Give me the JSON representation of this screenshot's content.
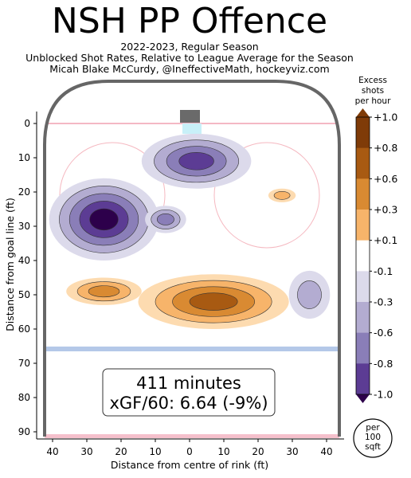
{
  "header": {
    "title": "NSH PP Offence",
    "subtitle_1": "2022-2023, Regular Season",
    "subtitle_2": "Unblocked Shot Rates, Relative to League Average for the Season",
    "subtitle_3": "Micah Blake McCurdy, @IneffectiveMath, hockeyviz.com"
  },
  "summary_box": {
    "minutes": "411 minutes",
    "xgf": "xGF/60: 6.64 (-9%)"
  },
  "per_badge": {
    "line1": "per",
    "line2": "100",
    "line3": "sqft"
  },
  "colors": {
    "orange_1": "#fddbb0",
    "orange_2": "#f7b46a",
    "orange_3": "#d98a32",
    "orange_4": "#a85a12",
    "orange_5": "#7f3b08",
    "purple_1": "#dcdaeb",
    "purple_2": "#b3acd1",
    "purple_3": "#8a7eb8",
    "purple_4": "#5c3c94",
    "purple_5": "#2d004b",
    "rink_board": "#666666",
    "blue_line": "#b4c8e8",
    "goal_line": "#f0a0b0"
  },
  "chart_data": {
    "type": "heatmap",
    "xlabel": "Distance from centre of rink (ft)",
    "ylabel": "Distance from goal line (ft)",
    "xlim": [
      -42.5,
      42.5
    ],
    "ylim": [
      -11,
      90
    ],
    "x_ticks": [
      40,
      30,
      20,
      10,
      0,
      10,
      20,
      30,
      40
    ],
    "x_tick_values": [
      -40,
      -30,
      -20,
      -10,
      0,
      10,
      20,
      30,
      40
    ],
    "y_ticks": [
      0,
      10,
      20,
      30,
      40,
      50,
      60,
      70,
      80,
      90
    ],
    "colorbar": {
      "title": [
        "Excess",
        "shots",
        "per hour"
      ],
      "labels": [
        "+1.0",
        "+0.8",
        "+0.6",
        "+0.3",
        "+0.1",
        "-0.1",
        "-0.3",
        "-0.6",
        "-0.8",
        "-1.0"
      ],
      "values": [
        1.0,
        0.8,
        0.6,
        0.3,
        0.1,
        -0.1,
        -0.3,
        -0.6,
        -0.8,
        -1.0
      ]
    },
    "hotspots": [
      {
        "x": -25,
        "y": 28,
        "rx": 16,
        "ry": 12,
        "level": -1.0
      },
      {
        "x": 2,
        "y": 11,
        "rx": 16,
        "ry": 8,
        "level": -0.8
      },
      {
        "x": -7,
        "y": 28,
        "rx": 6,
        "ry": 4,
        "level": -0.6
      },
      {
        "x": 35,
        "y": 50,
        "rx": 6,
        "ry": 7,
        "level": -0.3
      },
      {
        "x": 7,
        "y": 52,
        "rx": 22,
        "ry": 8,
        "level": 0.8
      },
      {
        "x": -25,
        "y": 49,
        "rx": 11,
        "ry": 4,
        "level": 0.6
      },
      {
        "x": 27,
        "y": 21,
        "rx": 4,
        "ry": 2,
        "level": 0.3
      }
    ]
  }
}
